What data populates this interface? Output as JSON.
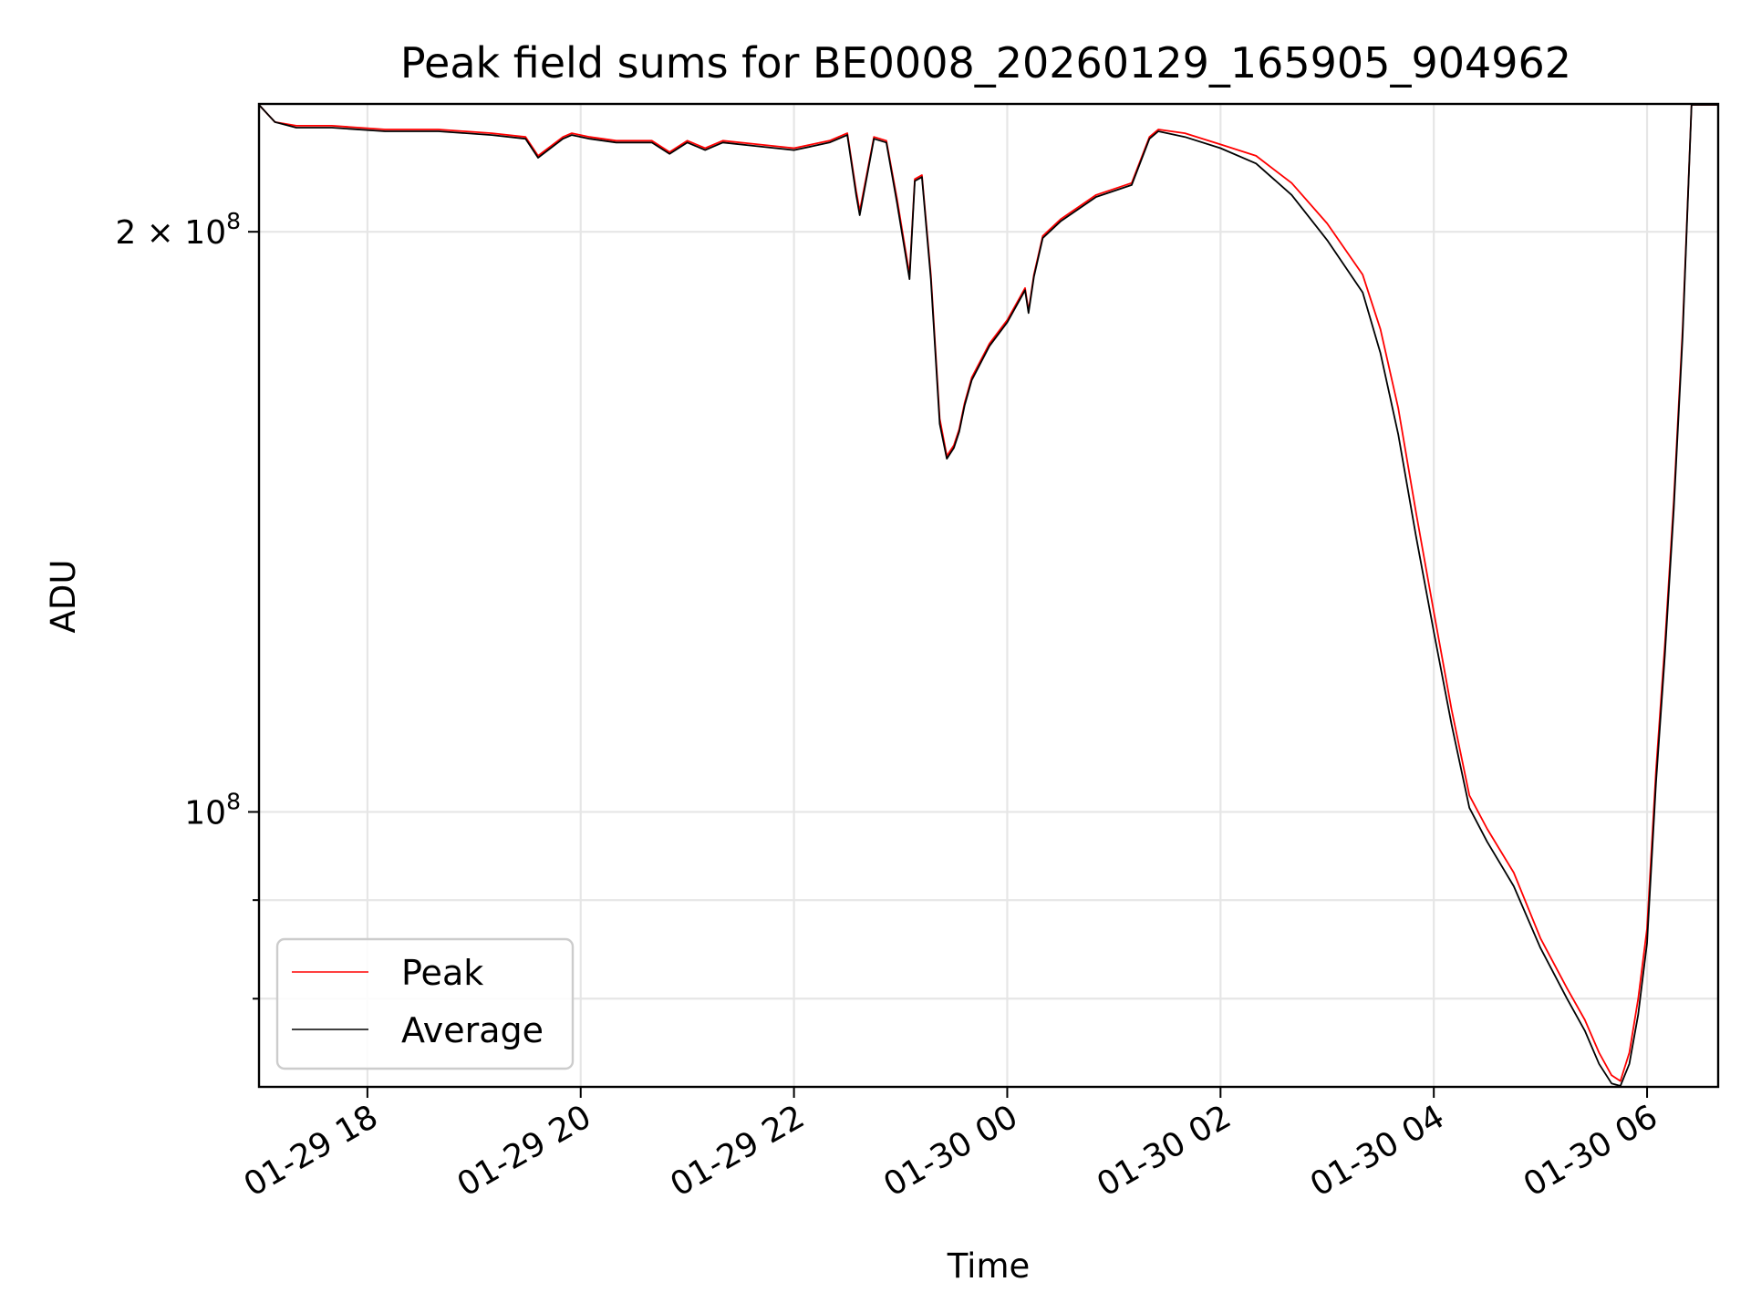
{
  "chart_data": {
    "type": "line",
    "title": "Peak field sums for BE0008_20260129_165905_904962",
    "xlabel": "Time",
    "ylabel": "ADU",
    "y_scale": "log",
    "grid": true,
    "legend_position": "lower-left",
    "xlim": [
      "2026-01-29 16:59",
      "2026-01-30 06:40"
    ],
    "ylim": [
      72000000,
      233000000
    ],
    "x_ticks": [
      {
        "value": "2026-01-29 18:00",
        "label": "01-29 18"
      },
      {
        "value": "2026-01-29 20:00",
        "label": "01-29 20"
      },
      {
        "value": "2026-01-29 22:00",
        "label": "01-29 22"
      },
      {
        "value": "2026-01-30 00:00",
        "label": "01-30 00"
      },
      {
        "value": "2026-01-30 02:00",
        "label": "01-30 02"
      },
      {
        "value": "2026-01-30 04:00",
        "label": "01-30 04"
      },
      {
        "value": "2026-01-30 06:00",
        "label": "01-30 06"
      }
    ],
    "y_ticks": [
      {
        "value": 200000000,
        "mantissa": "2",
        "label": "2 × 10",
        "exponent": "8"
      },
      {
        "value": 100000000,
        "mantissa": "",
        "label": "10",
        "exponent": "8"
      }
    ],
    "y_minor_ticks": [
      80000000,
      90000000
    ],
    "x": [
      "2026-01-29 16:59",
      "2026-01-29 17:08",
      "2026-01-29 17:20",
      "2026-01-29 17:40",
      "2026-01-29 18:10",
      "2026-01-29 18:40",
      "2026-01-29 19:10",
      "2026-01-29 19:29",
      "2026-01-29 19:36",
      "2026-01-29 19:50",
      "2026-01-29 19:55",
      "2026-01-29 20:05",
      "2026-01-29 20:20",
      "2026-01-29 20:40",
      "2026-01-29 20:50",
      "2026-01-29 21:00",
      "2026-01-29 21:10",
      "2026-01-29 21:20",
      "2026-01-29 21:40",
      "2026-01-29 22:00",
      "2026-01-29 22:10",
      "2026-01-29 22:20",
      "2026-01-29 22:30",
      "2026-01-29 22:35",
      "2026-01-29 22:37",
      "2026-01-29 22:45",
      "2026-01-29 22:52",
      "2026-01-29 22:58",
      "2026-01-29 23:05",
      "2026-01-29 23:08",
      "2026-01-29 23:12",
      "2026-01-29 23:17",
      "2026-01-29 23:22",
      "2026-01-29 23:26",
      "2026-01-29 23:30",
      "2026-01-29 23:33",
      "2026-01-29 23:36",
      "2026-01-29 23:40",
      "2026-01-29 23:50",
      "2026-01-30 00:00",
      "2026-01-30 00:10",
      "2026-01-30 00:12",
      "2026-01-30 00:15",
      "2026-01-30 00:20",
      "2026-01-30 00:30",
      "2026-01-30 00:50",
      "2026-01-30 01:10",
      "2026-01-30 01:20",
      "2026-01-30 01:25",
      "2026-01-30 01:40",
      "2026-01-30 02:00",
      "2026-01-30 02:20",
      "2026-01-30 02:40",
      "2026-01-30 03:00",
      "2026-01-30 03:20",
      "2026-01-30 03:30",
      "2026-01-30 03:40",
      "2026-01-30 03:50",
      "2026-01-30 04:00",
      "2026-01-30 04:10",
      "2026-01-30 04:20",
      "2026-01-30 04:30",
      "2026-01-30 04:45",
      "2026-01-30 05:00",
      "2026-01-30 05:15",
      "2026-01-30 05:25",
      "2026-01-30 05:33",
      "2026-01-30 05:40",
      "2026-01-30 05:45",
      "2026-01-30 05:50",
      "2026-01-30 05:55",
      "2026-01-30 06:00",
      "2026-01-30 06:05",
      "2026-01-30 06:10",
      "2026-01-30 06:15",
      "2026-01-30 06:20",
      "2026-01-30 06:25",
      "2026-01-30 06:40"
    ],
    "series": [
      {
        "name": "Peak",
        "color": "#ff0000",
        "values": [
          233000000,
          228000000,
          227000000,
          227000000,
          226000000,
          226000000,
          225000000,
          224000000,
          219000000,
          224000000,
          225000000,
          224000000,
          223000000,
          223000000,
          220000000,
          223000000,
          221000000,
          223000000,
          222000000,
          221000000,
          222000000,
          223000000,
          225000000,
          210000000,
          205000000,
          224000000,
          223000000,
          208000000,
          190000000,
          213000000,
          214000000,
          190000000,
          160000000,
          153000000,
          155000000,
          158000000,
          163000000,
          168000000,
          175000000,
          180000000,
          187000000,
          182000000,
          190000000,
          199000000,
          203000000,
          209000000,
          212000000,
          224000000,
          226000000,
          225000000,
          222000000,
          219000000,
          212000000,
          202000000,
          190000000,
          178000000,
          162000000,
          143000000,
          127000000,
          113000000,
          102000000,
          98000000,
          93000000,
          86000000,
          81000000,
          78000000,
          75000000,
          73000000,
          72500000,
          75000000,
          80000000,
          87000000,
          105000000,
          122000000,
          145000000,
          178000000,
          233000000,
          233000000
        ]
      },
      {
        "name": "Average",
        "color": "#000000",
        "values": [
          233000000,
          228000000,
          226500000,
          226500000,
          225500000,
          225500000,
          224500000,
          223500000,
          218500000,
          223500000,
          224500000,
          223500000,
          222500000,
          222500000,
          219500000,
          222500000,
          220500000,
          222500000,
          221500000,
          220500000,
          221500000,
          222500000,
          224500000,
          209000000,
          204000000,
          223500000,
          222500000,
          207000000,
          189000000,
          212500000,
          213500000,
          189000000,
          159000000,
          152500000,
          154500000,
          157500000,
          162500000,
          167500000,
          174500000,
          179500000,
          186500000,
          181500000,
          189500000,
          198500000,
          202500000,
          208500000,
          211500000,
          223500000,
          225500000,
          224000000,
          221000000,
          217000000,
          209000000,
          198000000,
          186000000,
          173000000,
          157000000,
          139000000,
          124000000,
          111000000,
          100500000,
          96500000,
          91500000,
          85000000,
          80000000,
          77000000,
          74000000,
          72300000,
          72000000,
          74000000,
          78500000,
          85500000,
          103500000,
          120500000,
          143500000,
          176500000,
          233000000,
          233000000
        ]
      }
    ]
  }
}
